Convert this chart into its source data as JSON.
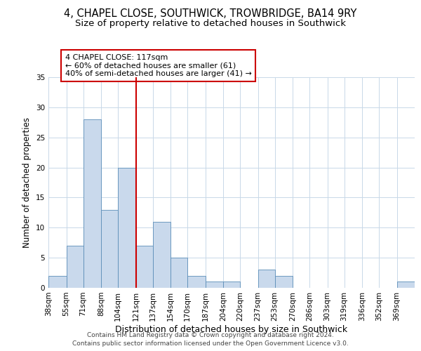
{
  "title": "4, CHAPEL CLOSE, SOUTHWICK, TROWBRIDGE, BA14 9RY",
  "subtitle": "Size of property relative to detached houses in Southwick",
  "xlabel": "Distribution of detached houses by size in Southwick",
  "ylabel": "Number of detached properties",
  "bar_labels": [
    "38sqm",
    "55sqm",
    "71sqm",
    "88sqm",
    "104sqm",
    "121sqm",
    "137sqm",
    "154sqm",
    "170sqm",
    "187sqm",
    "204sqm",
    "220sqm",
    "237sqm",
    "253sqm",
    "270sqm",
    "286sqm",
    "303sqm",
    "319sqm",
    "336sqm",
    "352sqm",
    "369sqm"
  ],
  "bar_values": [
    2,
    7,
    28,
    13,
    20,
    7,
    11,
    5,
    2,
    1,
    1,
    0,
    3,
    2,
    0,
    0,
    0,
    0,
    0,
    0,
    1
  ],
  "bin_edges": [
    38,
    55,
    71,
    88,
    104,
    121,
    137,
    154,
    170,
    187,
    204,
    220,
    237,
    253,
    270,
    286,
    303,
    319,
    336,
    352,
    369,
    386
  ],
  "bar_color": "#c9d9ec",
  "bar_edge_color": "#5b8db8",
  "vline_x": 121,
  "vline_color": "#cc0000",
  "ylim": [
    0,
    35
  ],
  "yticks": [
    0,
    5,
    10,
    15,
    20,
    25,
    30,
    35
  ],
  "annotation_text": "4 CHAPEL CLOSE: 117sqm\n← 60% of detached houses are smaller (61)\n40% of semi-detached houses are larger (41) →",
  "annotation_box_color": "#ffffff",
  "annotation_box_edge_color": "#cc0000",
  "footer_line1": "Contains HM Land Registry data © Crown copyright and database right 2024.",
  "footer_line2": "Contains public sector information licensed under the Open Government Licence v3.0.",
  "background_color": "#ffffff",
  "grid_color": "#c8d8e8",
  "title_fontsize": 10.5,
  "subtitle_fontsize": 9.5,
  "xlabel_fontsize": 9,
  "ylabel_fontsize": 8.5,
  "tick_fontsize": 7.5,
  "annotation_fontsize": 8,
  "footer_fontsize": 6.5
}
